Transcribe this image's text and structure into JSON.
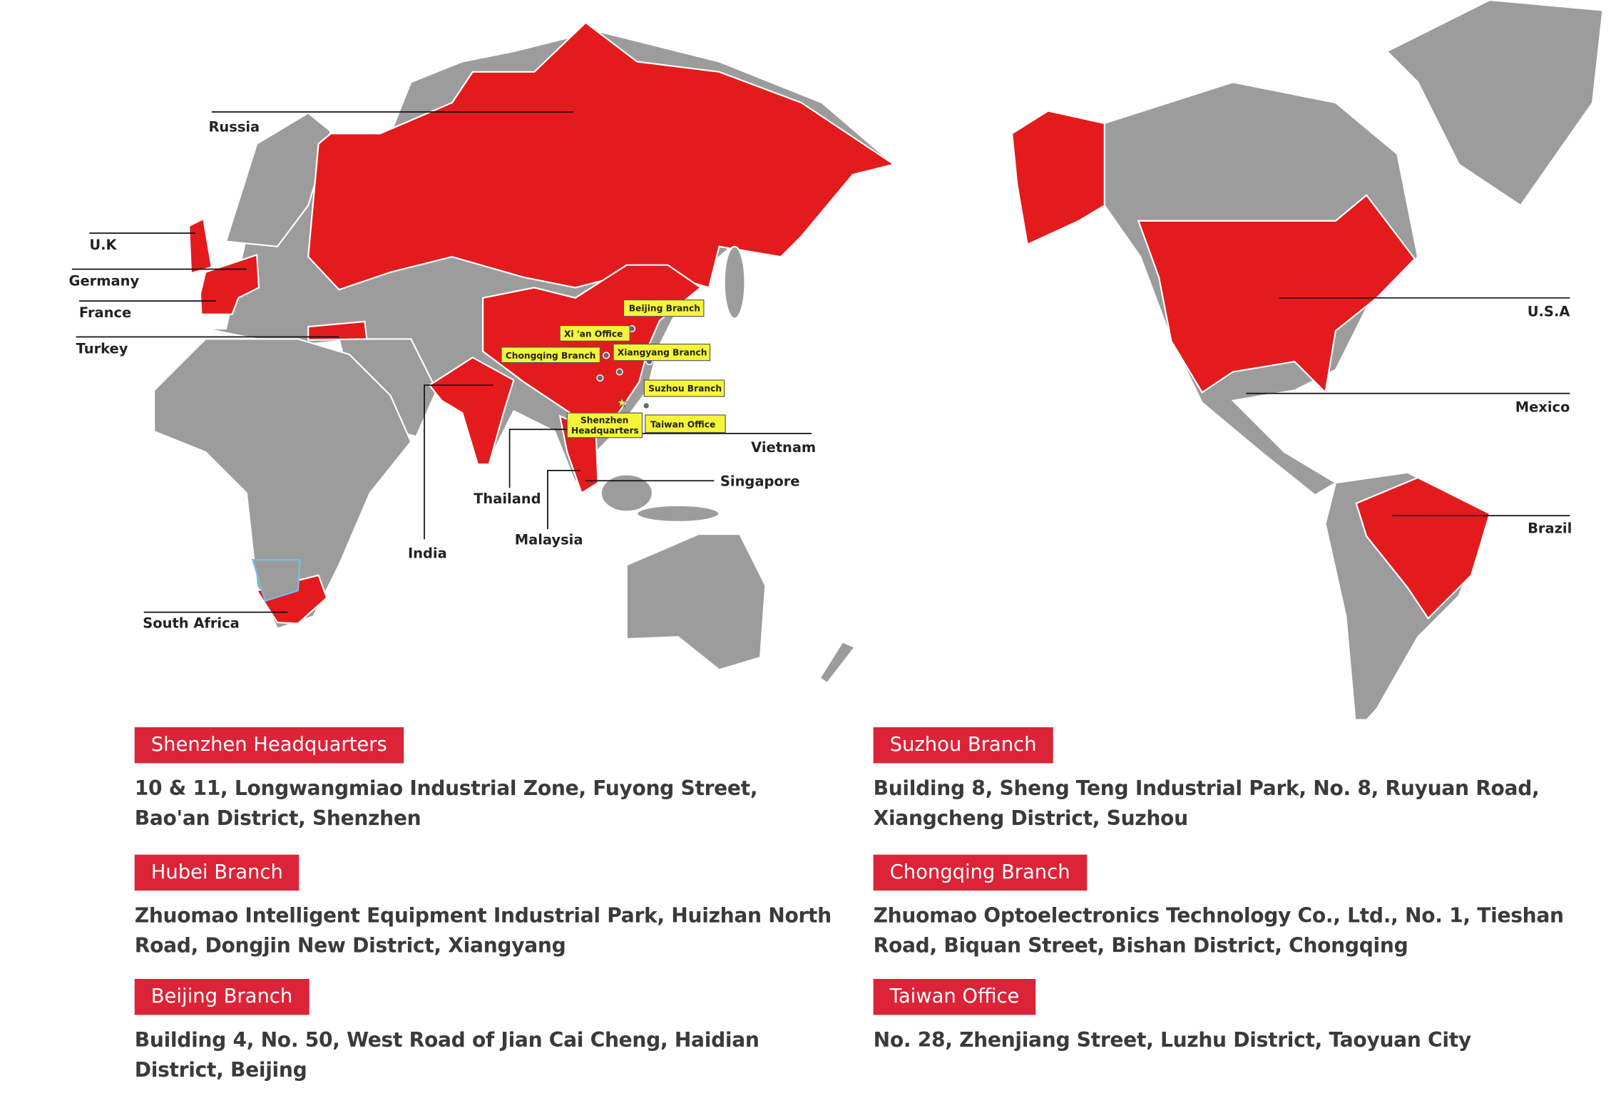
{
  "colors": {
    "highlight": "#e31b1d",
    "land": "#9c9c9c",
    "callout": "#f5f53a",
    "tag": "#dc2337"
  },
  "map": {
    "countries": [
      {
        "label": "Russia"
      },
      {
        "label": "U.K"
      },
      {
        "label": "Germany"
      },
      {
        "label": "France"
      },
      {
        "label": "Turkey"
      },
      {
        "label": "India"
      },
      {
        "label": "Thailand"
      },
      {
        "label": "Malaysia"
      },
      {
        "label": "Singapore"
      },
      {
        "label": "Vietnam"
      },
      {
        "label": "South Africa"
      },
      {
        "label": "U.S.A"
      },
      {
        "label": "Mexico"
      },
      {
        "label": "Brazil"
      }
    ],
    "callouts": [
      {
        "label": "Beijing Branch"
      },
      {
        "label": "Xi 'an Office"
      },
      {
        "label": "Chongqing Branch"
      },
      {
        "label": "Xiangyang Branch"
      },
      {
        "label": "Suzhou Branch"
      },
      {
        "label": "Shenzhen",
        "label2": "Headquarters"
      },
      {
        "label": "Taiwan Office"
      }
    ]
  },
  "offices": [
    {
      "name": "Shenzhen Headquarters",
      "address": "10 & 11, Longwangmiao Industrial Zone, Fuyong Street, Bao'an District, Shenzhen"
    },
    {
      "name": "Suzhou Branch",
      "address": "Building 8, Sheng Teng Industrial Park, No. 8, Ruyuan Road, Xiangcheng District, Suzhou"
    },
    {
      "name": "Hubei Branch",
      "address": "Zhuomao Intelligent Equipment Industrial Park, Huizhan North Road, Dongjin New District, Xiangyang"
    },
    {
      "name": "Chongqing Branch",
      "address": "Zhuomao Optoelectronics Technology Co., Ltd., No. 1, Tieshan Road, Biquan Street, Bishan District, Chongqing"
    },
    {
      "name": "Beijing Branch",
      "address": "Building 4, No. 50, West Road of Jian Cai Cheng, Haidian District, Beijing"
    },
    {
      "name": "Taiwan Office",
      "address": "No. 28, Zhenjiang Street, Luzhu District, Taoyuan City"
    }
  ]
}
